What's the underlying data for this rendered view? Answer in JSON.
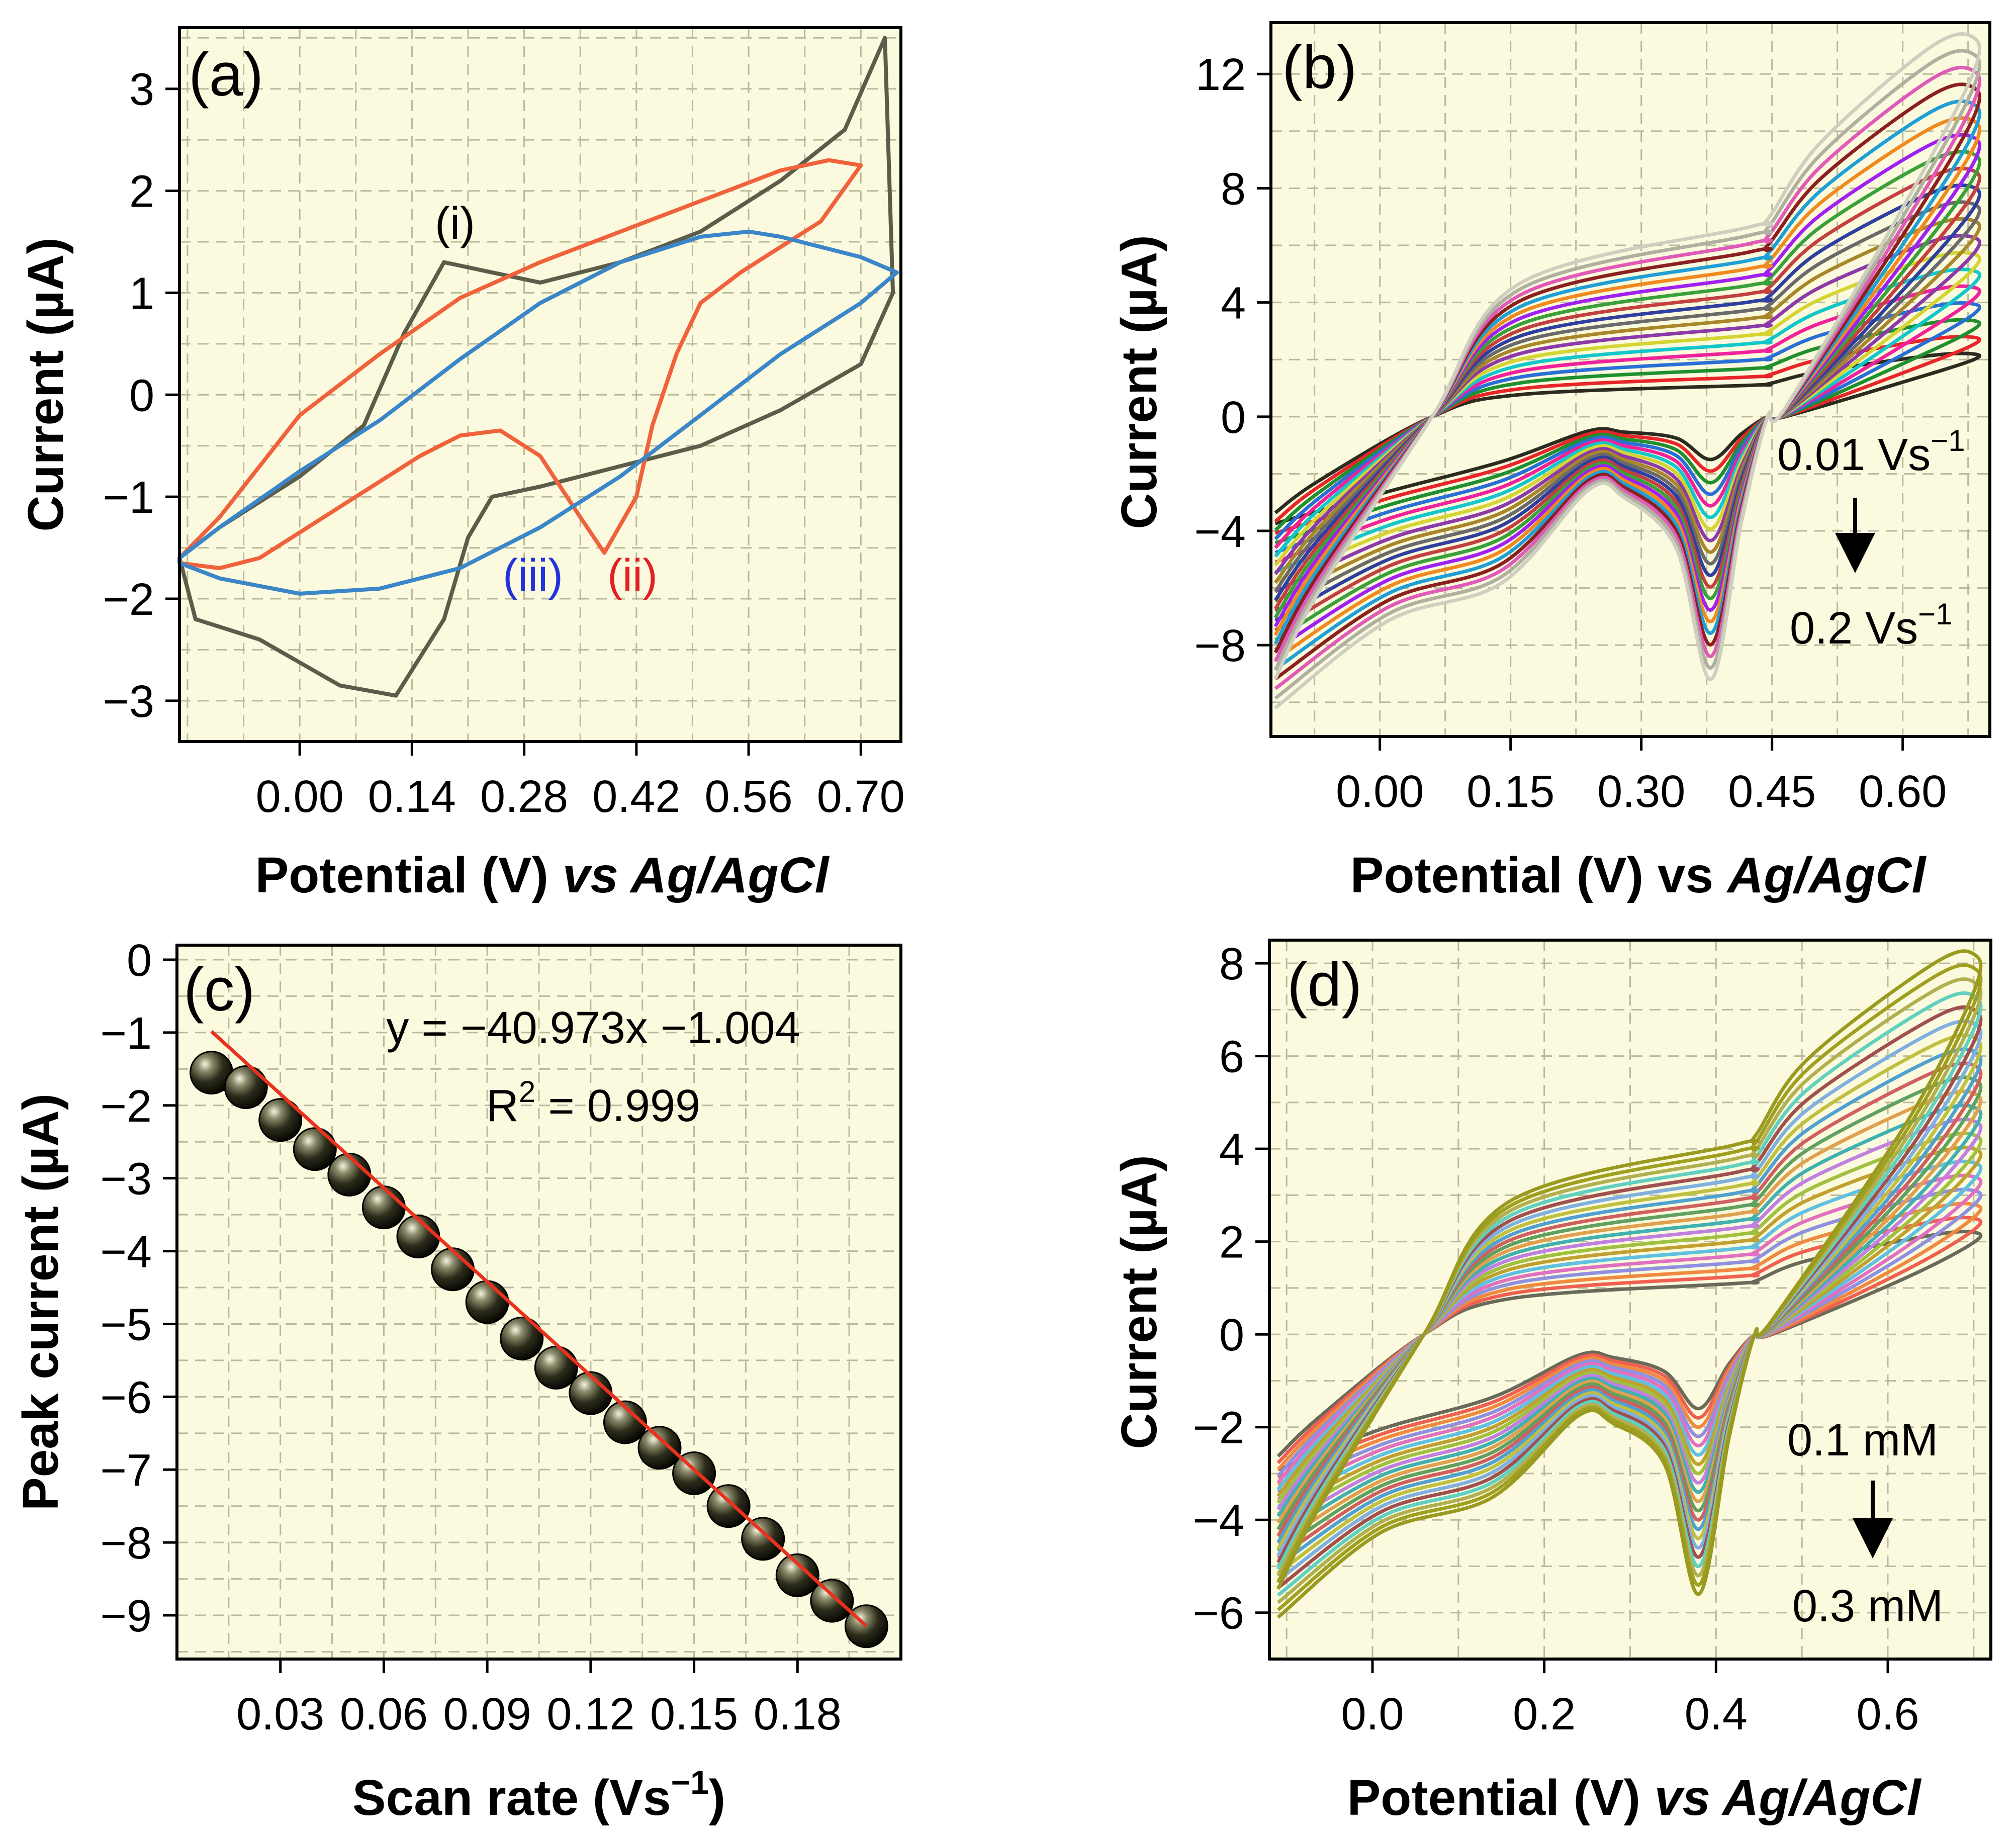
{
  "chart_data": [
    {
      "id": "a",
      "type": "line",
      "panel_label": "(a)",
      "xlabel": "Potential (V)",
      "xlabel_suffix": "vs Ag/AgCl",
      "ylabel": "Current (µA)",
      "xlim": [
        -0.15,
        0.75
      ],
      "ylim": [
        -3.4,
        3.6
      ],
      "xticks": [
        0.0,
        0.14,
        0.28,
        0.42,
        0.56,
        0.7
      ],
      "xtick_labels": [
        "0.00",
        "0.14",
        "0.28",
        "0.42",
        "0.56",
        "0.70"
      ],
      "yticks": [
        -3,
        -2,
        -1,
        0,
        1,
        2,
        3
      ],
      "ytick_labels": [
        "−3",
        "−2",
        "−1",
        "0",
        "1",
        "2",
        "3"
      ],
      "grid": true,
      "series": [
        {
          "name": "(i)",
          "color": "#5c5c4a",
          "x": [
            -0.13,
            -0.05,
            0.05,
            0.12,
            0.18,
            0.21,
            0.24,
            0.3,
            0.4,
            0.5,
            0.6,
            0.7,
            0.74,
            0.73,
            0.68,
            0.6,
            0.5,
            0.4,
            0.3,
            0.24,
            0.18,
            0.13,
            0.08,
            0.0,
            -0.1,
            -0.15
          ],
          "y": [
            -2.2,
            -2.4,
            -2.85,
            -2.95,
            -2.2,
            -1.4,
            -1.0,
            -0.9,
            -0.7,
            -0.5,
            -0.15,
            0.3,
            1.0,
            3.5,
            2.6,
            2.1,
            1.6,
            1.3,
            1.1,
            1.2,
            1.3,
            0.6,
            -0.3,
            -0.8,
            -1.3,
            -1.6
          ]
        },
        {
          "name": "(ii)",
          "color": "#f0623c",
          "x": [
            -0.15,
            -0.1,
            -0.05,
            0.05,
            0.15,
            0.2,
            0.25,
            0.3,
            0.35,
            0.38,
            0.42,
            0.44,
            0.47,
            0.5,
            0.55,
            0.6,
            0.65,
            0.7,
            0.66,
            0.6,
            0.5,
            0.4,
            0.3,
            0.2,
            0.1,
            0.0,
            -0.1,
            -0.15
          ],
          "y": [
            -1.65,
            -1.7,
            -1.6,
            -1.1,
            -0.6,
            -0.4,
            -0.35,
            -0.6,
            -1.2,
            -1.55,
            -1.0,
            -0.3,
            0.4,
            0.9,
            1.2,
            1.45,
            1.7,
            2.25,
            2.3,
            2.2,
            1.9,
            1.6,
            1.3,
            0.95,
            0.4,
            -0.2,
            -1.2,
            -1.6
          ]
        },
        {
          "name": "(iii)",
          "color": "#3a86c8",
          "x": [
            -0.15,
            -0.1,
            0.0,
            0.1,
            0.2,
            0.3,
            0.4,
            0.5,
            0.6,
            0.7,
            0.745,
            0.7,
            0.6,
            0.56,
            0.5,
            0.4,
            0.3,
            0.2,
            0.1,
            0.0,
            -0.1,
            -0.15
          ],
          "y": [
            -1.65,
            -1.8,
            -1.95,
            -1.9,
            -1.7,
            -1.3,
            -0.8,
            -0.2,
            0.4,
            0.9,
            1.2,
            1.35,
            1.55,
            1.6,
            1.55,
            1.3,
            0.9,
            0.35,
            -0.25,
            -0.75,
            -1.3,
            -1.6
          ]
        }
      ],
      "annotations": [
        {
          "text": "(i)",
          "x": 0.22,
          "y": 1.6,
          "color": "#222222"
        },
        {
          "text": "(iii)",
          "x": 0.31,
          "y": -1.8,
          "color": "#2233dd"
        },
        {
          "text": "(ii)",
          "x": 0.43,
          "y": -1.8,
          "color": "#e02222"
        }
      ]
    },
    {
      "id": "b",
      "type": "line",
      "panel_label": "(b)",
      "xlabel": "Potential (V)",
      "xlabel_mid": "vs",
      "xlabel_suffix": "Ag/AgCl",
      "ylabel": "Current (µA)",
      "xlim": [
        -0.125,
        0.7
      ],
      "ylim": [
        -11.2,
        13.8
      ],
      "xticks": [
        0.0,
        0.15,
        0.3,
        0.45,
        0.6
      ],
      "xtick_labels": [
        "0.00",
        "0.15",
        "0.30",
        "0.45",
        "0.60"
      ],
      "yticks": [
        -8,
        -4,
        0,
        4,
        8,
        12
      ],
      "ytick_labels": [
        "−8",
        "−4",
        "0",
        "4",
        "8",
        "12"
      ],
      "grid": true,
      "family": {
        "count": 20,
        "parameter": "scan rate (V s⁻¹)",
        "first": 0.01,
        "last": 0.2,
        "cathodic_peak_first": -1.5,
        "cathodic_peak_last": -9.2,
        "anodic_end_first": 2.2,
        "anodic_end_last": 13.3,
        "colors": [
          "#2b2b1f",
          "#e8262a",
          "#1f8f2f",
          "#2a6fd6",
          "#f0229b",
          "#12c7c9",
          "#d4d433",
          "#8c3aa8",
          "#a8862a",
          "#6a6a6a",
          "#2f3fa0",
          "#c34040",
          "#3aa03a",
          "#a020f0",
          "#f08a20",
          "#1f9fd6",
          "#8a2020",
          "#e05ab8",
          "#b0b0a0",
          "#cfcfc0"
        ]
      },
      "annotations": [
        {
          "text_main": "0.01 Vs",
          "text_sup": "−1",
          "x": 0.6,
          "y": -1.3
        },
        {
          "text_main": "0.2 Vs",
          "text_sup": "−1",
          "x": 0.61,
          "y": -7.3
        }
      ]
    },
    {
      "id": "c",
      "type": "scatter",
      "panel_label": "(c)",
      "xlabel": "Scan rate (Vs",
      "xlabel_sup": "−1",
      "xlabel_close": ")",
      "ylabel": "Peak current (µA)",
      "xlim": [
        0.0,
        0.21
      ],
      "ylim": [
        -9.6,
        0.2
      ],
      "xticks": [
        0.03,
        0.06,
        0.09,
        0.12,
        0.15,
        0.18
      ],
      "xtick_labels": [
        "0.03",
        "0.06",
        "0.09",
        "0.12",
        "0.15",
        "0.18"
      ],
      "yticks": [
        0,
        -1,
        -2,
        -3,
        -4,
        -5,
        -6,
        -7,
        -8,
        -9
      ],
      "ytick_labels": [
        "0",
        "−1",
        "−2",
        "−3",
        "−4",
        "−5",
        "−6",
        "−7",
        "−8",
        "−9"
      ],
      "grid": true,
      "points": {
        "x": [
          0.01,
          0.02,
          0.03,
          0.04,
          0.05,
          0.06,
          0.07,
          0.08,
          0.09,
          0.1,
          0.11,
          0.12,
          0.13,
          0.14,
          0.15,
          0.16,
          0.17,
          0.18,
          0.19,
          0.2
        ],
        "y": [
          -1.55,
          -1.75,
          -2.2,
          -2.6,
          -2.95,
          -3.4,
          -3.8,
          -4.25,
          -4.7,
          -5.2,
          -5.6,
          -5.95,
          -6.35,
          -6.7,
          -7.05,
          -7.5,
          -7.95,
          -8.45,
          -8.8,
          -9.15
        ],
        "color": "#2b2b1a"
      },
      "fit": {
        "slope": -40.973,
        "intercept": -1.004,
        "x_range": [
          0.01,
          0.2
        ],
        "color": "#e8321e"
      },
      "equation": "y = −40.973x −1.004",
      "r2_prefix": "R",
      "r2_sup": "2",
      "r2_value": " = 0.999"
    },
    {
      "id": "d",
      "type": "line",
      "panel_label": "(d)",
      "xlabel": "Potential (V)",
      "xlabel_suffix": "vs Ag/AgCl",
      "ylabel": "Current (µA)",
      "xlim": [
        -0.12,
        0.72
      ],
      "ylim": [
        -7.0,
        8.5
      ],
      "xticks": [
        0.0,
        0.2,
        0.4,
        0.6
      ],
      "xtick_labels": [
        "0.0",
        "0.2",
        "0.4",
        "0.6"
      ],
      "yticks": [
        -6,
        -4,
        -2,
        0,
        2,
        4,
        6,
        8
      ],
      "ytick_labels": [
        "−6",
        "−4",
        "−2",
        "0",
        "2",
        "4",
        "6",
        "8"
      ],
      "grid": true,
      "family": {
        "count": 21,
        "parameter": "concentration (mM)",
        "first": 0.1,
        "last": 0.3,
        "cathodic_peak_first": -1.6,
        "cathodic_peak_last": -5.6,
        "anodic_end_first": 2.2,
        "anodic_end_last": 8.2,
        "colors": [
          "#6a6a5a",
          "#f06050",
          "#f08a40",
          "#9090e0",
          "#e070c0",
          "#60c0e0",
          "#c0a030",
          "#a0c040",
          "#c080e0",
          "#40b0b0",
          "#e0a050",
          "#60a060",
          "#d06060",
          "#50a0d0",
          "#c0c040",
          "#80b0e0",
          "#a05050",
          "#60d0c0",
          "#b0b050",
          "#a0a020",
          "#9a9a20"
        ]
      },
      "annotations": [
        {
          "text": "0.1 mM",
          "x": 0.57,
          "y": -2.3
        },
        {
          "text": "0.3 mM",
          "x": 0.57,
          "y": -5.9
        }
      ]
    }
  ]
}
